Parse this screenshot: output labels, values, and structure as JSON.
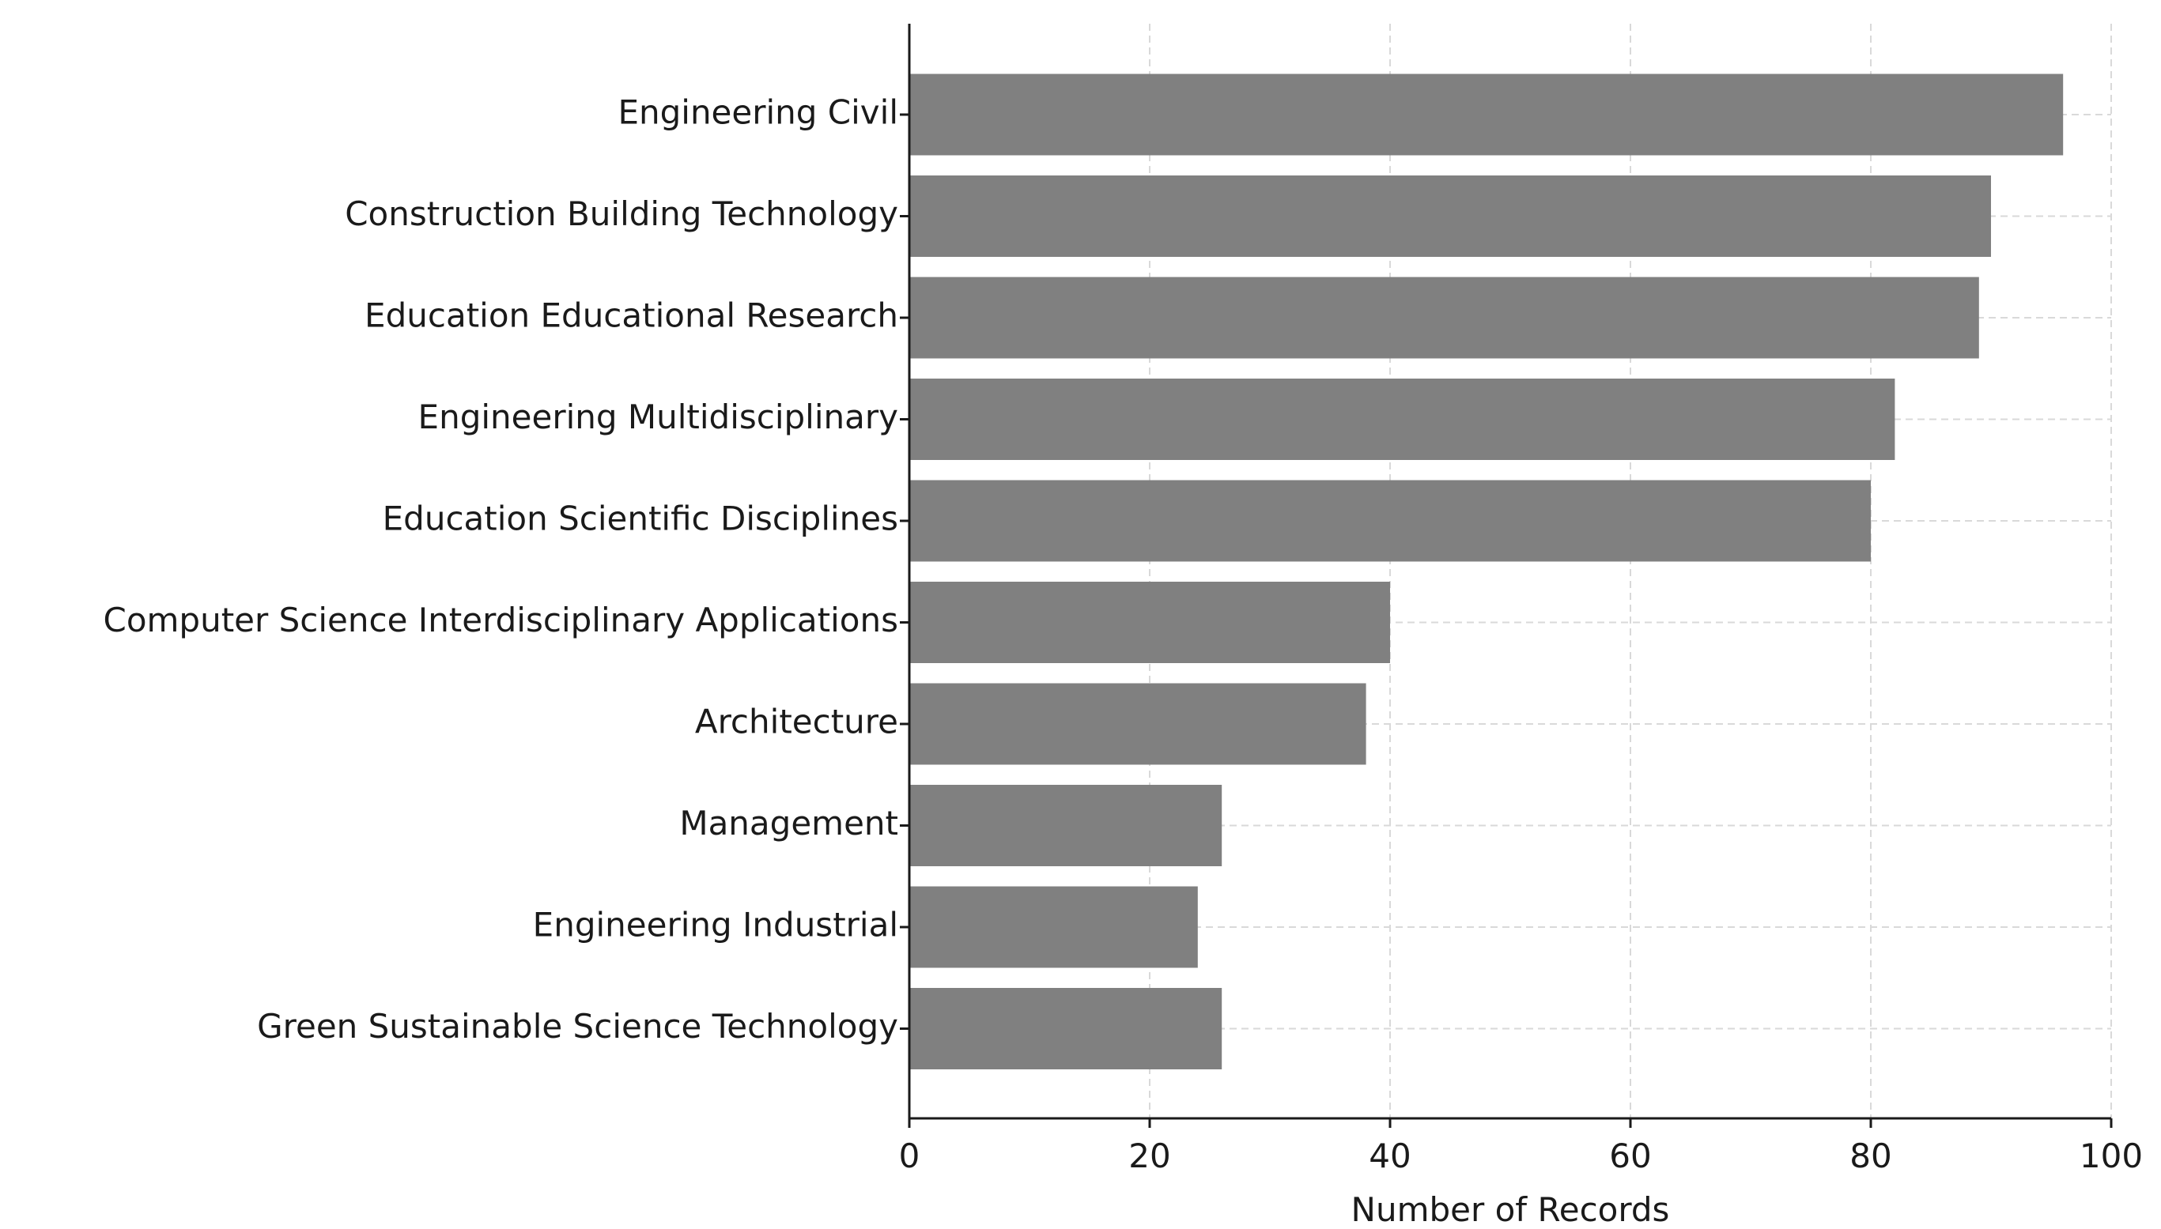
{
  "chart_data": {
    "type": "bar",
    "orientation": "horizontal",
    "title": "",
    "xlabel": "Number of Records",
    "ylabel": "",
    "categories": [
      "Engineering Civil",
      "Construction Building Technology",
      "Education Educational Research",
      "Engineering Multidisciplinary",
      "Education Scientific Disciplines",
      "Computer Science Interdisciplinary Applications",
      "Architecture",
      "Management",
      "Engineering Industrial",
      "Green Sustainable Science Technology"
    ],
    "values": [
      96,
      90,
      89,
      82,
      80,
      40,
      38,
      26,
      24,
      26
    ],
    "xlim": [
      0,
      100
    ],
    "xticks": [
      0,
      20,
      40,
      60,
      80,
      100
    ],
    "grid": true,
    "bar_color": "#808080"
  }
}
